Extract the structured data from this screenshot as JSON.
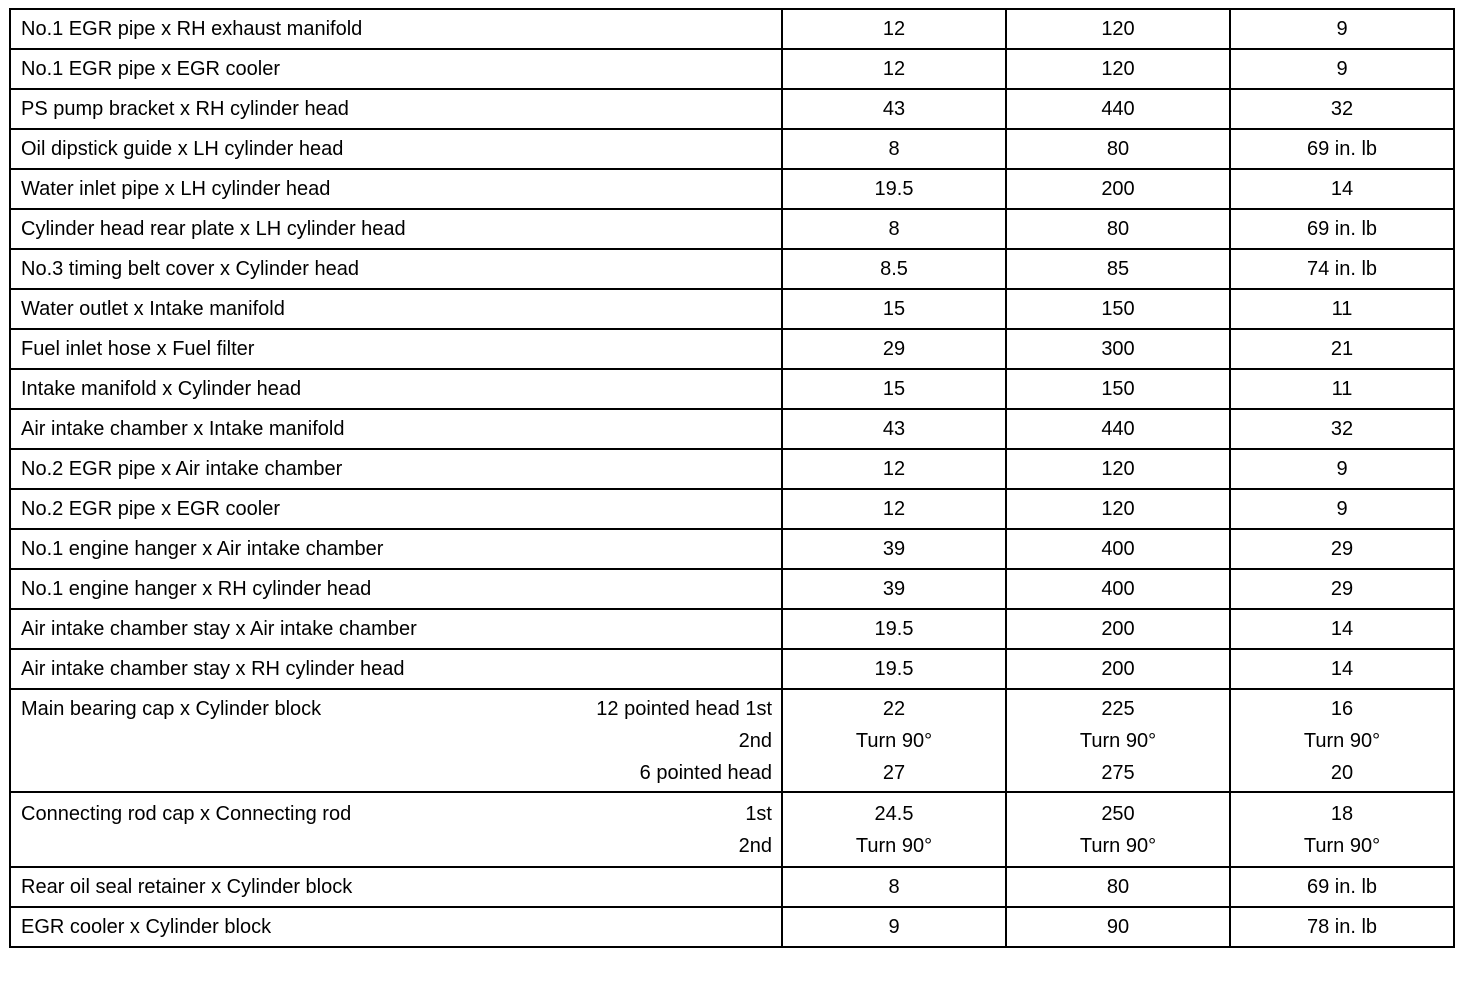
{
  "columns_note": "",
  "rows": [
    {
      "part": "No.1 EGR pipe x RH exhaust manifold",
      "lines": [
        {
          "sub": "",
          "nm": "12",
          "kgf": "120",
          "ft": "9"
        }
      ]
    },
    {
      "part": "No.1 EGR pipe x EGR cooler",
      "lines": [
        {
          "sub": "",
          "nm": "12",
          "kgf": "120",
          "ft": "9"
        }
      ]
    },
    {
      "part": "PS pump bracket x RH cylinder head",
      "lines": [
        {
          "sub": "",
          "nm": "43",
          "kgf": "440",
          "ft": "32"
        }
      ]
    },
    {
      "part": "Oil dipstick guide x LH cylinder head",
      "lines": [
        {
          "sub": "",
          "nm": "8",
          "kgf": "80",
          "ft": "69 in. lb"
        }
      ]
    },
    {
      "part": "Water inlet pipe x LH cylinder head",
      "lines": [
        {
          "sub": "",
          "nm": "19.5",
          "kgf": "200",
          "ft": "14"
        }
      ]
    },
    {
      "part": "Cylinder head rear plate x LH cylinder head",
      "lines": [
        {
          "sub": "",
          "nm": "8",
          "kgf": "80",
          "ft": "69 in. lb"
        }
      ]
    },
    {
      "part": "No.3 timing belt cover x Cylinder head",
      "lines": [
        {
          "sub": "",
          "nm": "8.5",
          "kgf": "85",
          "ft": "74 in. lb"
        }
      ]
    },
    {
      "part": "Water outlet x Intake manifold",
      "lines": [
        {
          "sub": "",
          "nm": "15",
          "kgf": "150",
          "ft": "11"
        }
      ]
    },
    {
      "part": "Fuel inlet hose x Fuel filter",
      "lines": [
        {
          "sub": "",
          "nm": "29",
          "kgf": "300",
          "ft": "21"
        }
      ]
    },
    {
      "part": "Intake manifold x Cylinder head",
      "lines": [
        {
          "sub": "",
          "nm": "15",
          "kgf": "150",
          "ft": "11"
        }
      ]
    },
    {
      "part": "Air intake chamber x Intake manifold",
      "lines": [
        {
          "sub": "",
          "nm": "43",
          "kgf": "440",
          "ft": "32"
        }
      ]
    },
    {
      "part": "No.2 EGR pipe x Air intake chamber",
      "lines": [
        {
          "sub": "",
          "nm": "12",
          "kgf": "120",
          "ft": "9"
        }
      ]
    },
    {
      "part": "No.2 EGR pipe x EGR cooler",
      "lines": [
        {
          "sub": "",
          "nm": "12",
          "kgf": "120",
          "ft": "9"
        }
      ]
    },
    {
      "part": "No.1 engine hanger x Air intake chamber",
      "lines": [
        {
          "sub": "",
          "nm": "39",
          "kgf": "400",
          "ft": "29"
        }
      ]
    },
    {
      "part": "No.1 engine hanger x RH cylinder head",
      "lines": [
        {
          "sub": "",
          "nm": "39",
          "kgf": "400",
          "ft": "29"
        }
      ]
    },
    {
      "part": "Air intake chamber stay x Air intake chamber",
      "lines": [
        {
          "sub": "",
          "nm": "19.5",
          "kgf": "200",
          "ft": "14"
        }
      ]
    },
    {
      "part": "Air intake chamber stay x RH cylinder head",
      "lines": [
        {
          "sub": "",
          "nm": "19.5",
          "kgf": "200",
          "ft": "14"
        }
      ]
    },
    {
      "part": "Main bearing cap x Cylinder block",
      "lines": [
        {
          "sub": "12 pointed head  1st",
          "nm": "22",
          "kgf": "225",
          "ft": "16"
        },
        {
          "sub": "2nd",
          "nm": "Turn 90°",
          "kgf": "Turn 90°",
          "ft": "Turn 90°"
        },
        {
          "sub": "6 pointed head",
          "nm": "27",
          "kgf": "275",
          "ft": "20"
        }
      ]
    },
    {
      "part": "Connecting rod cap x Connecting rod",
      "lines": [
        {
          "sub": "1st",
          "nm": "24.5",
          "kgf": "250",
          "ft": "18"
        },
        {
          "sub": "2nd",
          "nm": "Turn 90°",
          "kgf": "Turn 90°",
          "ft": "Turn 90°"
        }
      ]
    },
    {
      "part": "Rear oil seal retainer x Cylinder block",
      "lines": [
        {
          "sub": "",
          "nm": "8",
          "kgf": "80",
          "ft": "69 in. lb"
        }
      ]
    },
    {
      "part": "EGR cooler x Cylinder block",
      "lines": [
        {
          "sub": "",
          "nm": "9",
          "kgf": "90",
          "ft": "78 in. lb"
        }
      ]
    }
  ]
}
